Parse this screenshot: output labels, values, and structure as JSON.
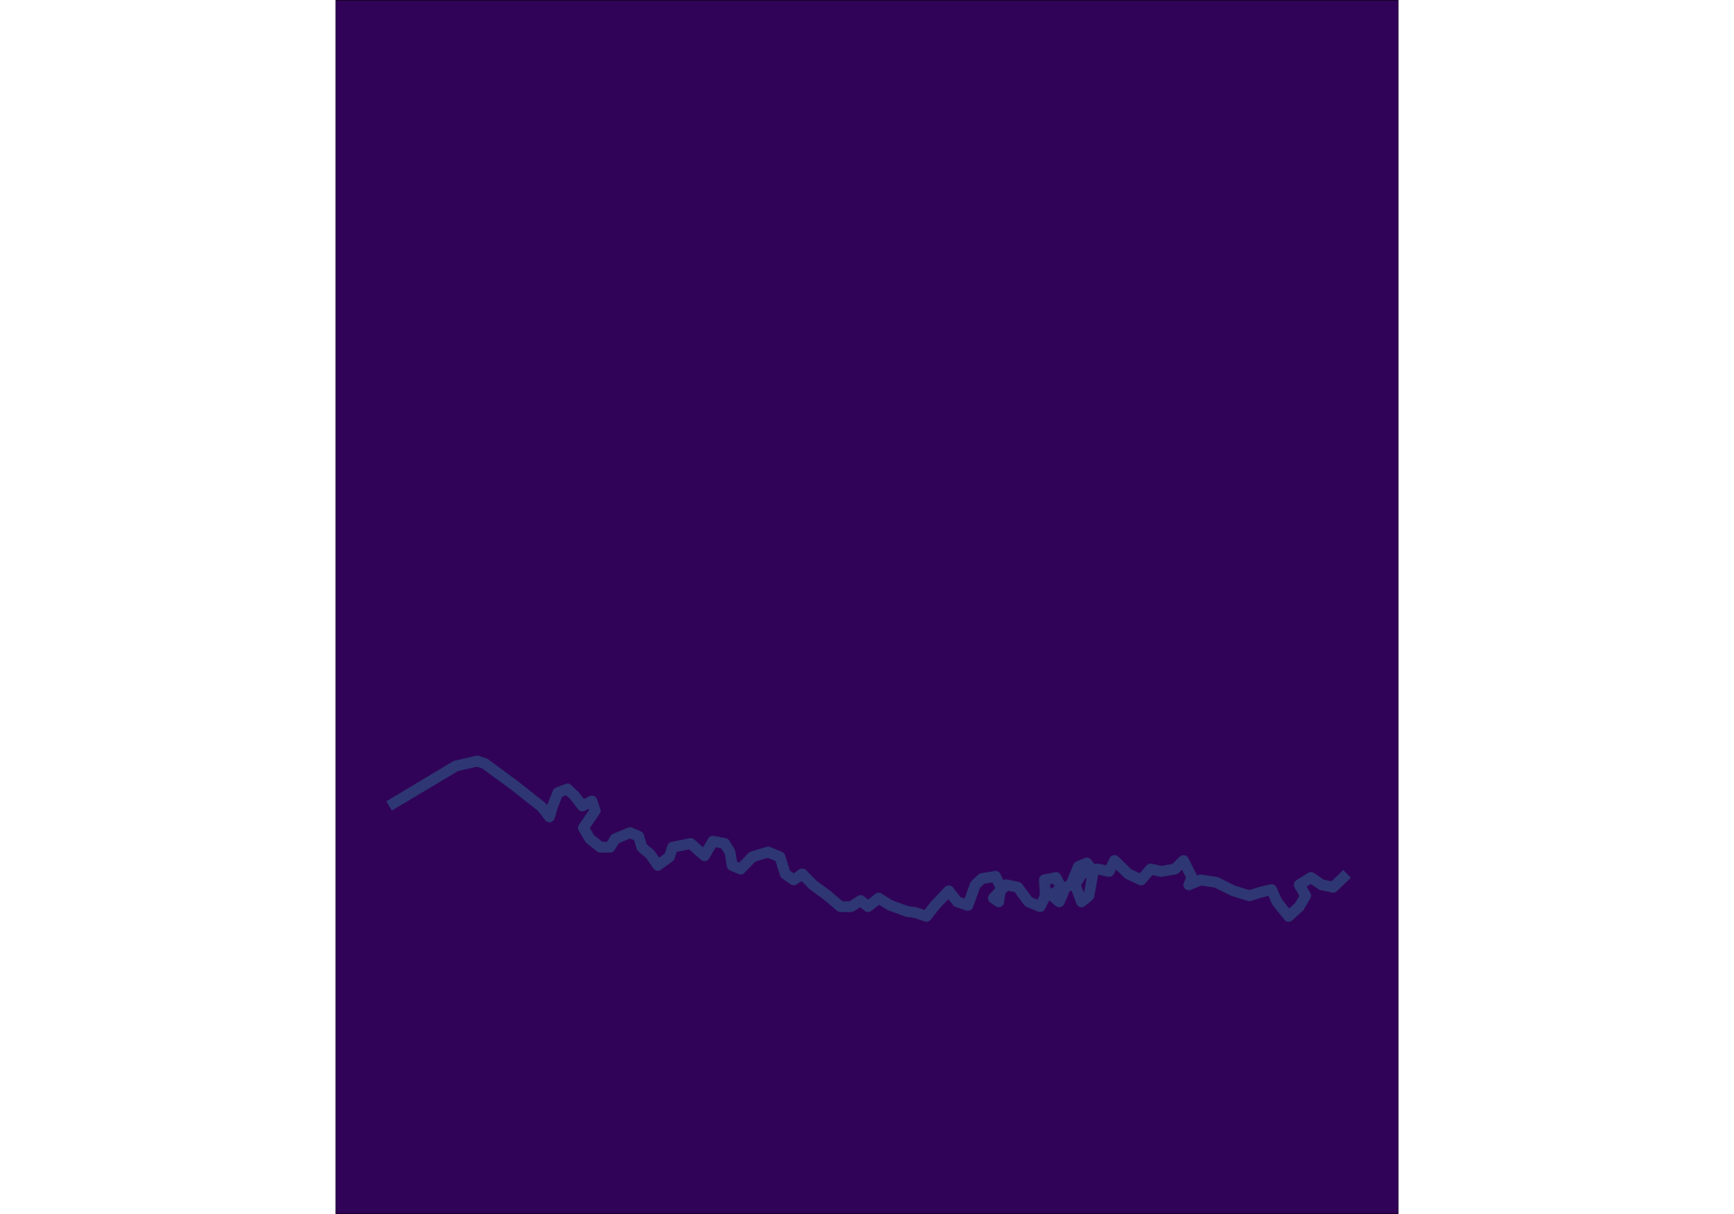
{
  "chart_data": {
    "type": "line",
    "x": [
      5.0,
      11.3,
      13.3,
      14.0,
      16.8,
      19.4,
      20.1,
      20.4,
      20.9,
      21.8,
      22.5,
      23.2,
      24.1,
      24.4,
      23.3,
      23.9,
      24.9,
      25.8,
      26.3,
      27.7,
      28.5,
      28.8,
      29.6,
      30.3,
      31.4,
      31.7,
      33.4,
      34.7,
      35.5,
      36.6,
      37.1,
      37.3,
      38.1,
      39.2,
      40.7,
      41.8,
      42.3,
      43.1,
      43.9,
      44.9,
      46.3,
      47.5,
      48.5,
      49.4,
      50.1,
      51.1,
      52.2,
      53.8,
      54.6,
      55.6,
      56.4,
      57.7,
      58.5,
      59.5,
      60.2,
      60.8,
      62.1,
      62.6,
      62.4,
      61.9,
      63.1,
      64.2,
      65.2,
      66.3,
      66.8,
      66.7,
      67.8,
      68.5,
      68.1,
      67.3,
      69.2,
      69.9,
      70.7,
      71.3,
      70.9,
      70.2,
      69.6,
      70.2,
      71.7,
      72.8,
      73.3,
      74.6,
      75.8,
      76.7,
      77.7,
      79.0,
      79.8,
      80.6,
      80.3,
      81.4,
      82.9,
      84.5,
      86.0,
      87.1,
      88.1,
      88.6,
      89.7,
      90.7,
      91.3,
      90.7,
      91.8,
      92.8,
      93.9,
      95.2
    ],
    "values": [
      33.6,
      36.9,
      37.3,
      37.1,
      35.3,
      33.5,
      32.7,
      33.6,
      34.7,
      35.0,
      34.4,
      33.6,
      34.0,
      33.2,
      31.8,
      30.9,
      30.2,
      30.2,
      30.9,
      31.4,
      31.1,
      30.2,
      29.6,
      28.7,
      29.4,
      30.2,
      30.5,
      29.5,
      30.7,
      30.5,
      29.8,
      28.7,
      28.4,
      29.4,
      29.8,
      29.4,
      28.0,
      27.5,
      28.0,
      27.1,
      26.2,
      25.3,
      25.3,
      25.8,
      25.3,
      26.0,
      25.4,
      24.9,
      24.8,
      24.5,
      25.4,
      26.6,
      25.7,
      25.4,
      27.1,
      27.6,
      27.8,
      26.9,
      25.7,
      26.0,
      27.1,
      26.9,
      25.7,
      25.3,
      26.2,
      27.5,
      27.7,
      26.5,
      25.7,
      26.3,
      27.1,
      28.6,
      28.9,
      28.2,
      26.2,
      25.7,
      27.1,
      28.0,
      28.4,
      28.2,
      29.1,
      28.0,
      27.5,
      28.4,
      28.2,
      28.4,
      29.1,
      27.7,
      27.1,
      27.5,
      27.3,
      26.6,
      26.2,
      26.5,
      26.7,
      25.7,
      24.5,
      25.3,
      26.2,
      27.1,
      27.7,
      27.1,
      26.9,
      28.0
    ],
    "color": "#2e3773",
    "background": "#300358",
    "xlim": [
      0,
      100
    ],
    "ylim": [
      0,
      100
    ]
  }
}
